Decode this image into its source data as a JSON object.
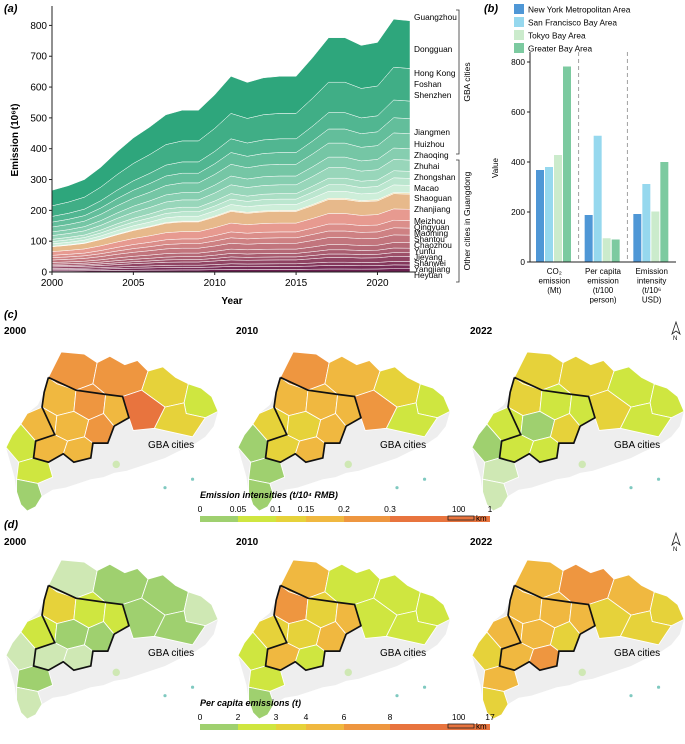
{
  "panel_a": {
    "label": "(a)",
    "ylabel": "Emission (10⁶t)",
    "xlabel": "Year",
    "group_top": "GBA cities",
    "group_bottom": "Other cities in Guangdong",
    "cities": [
      "Guangzhou",
      "Dongguan",
      "Hong Kong",
      "Foshan",
      "Shenzhen",
      "Jiangmen",
      "Huizhou",
      "Zhaoqing",
      "Zhuhai",
      "Zhongshan",
      "Macao",
      "Shaoguan",
      "Zhanjiang",
      "Meizhou",
      "Qingyuan",
      "Maoming",
      "Shantou",
      "Chaozhou",
      "Yunfu",
      "Jieyang",
      "Shanwei",
      "Yangjiang",
      "Heyuan"
    ]
  },
  "panel_b": {
    "label": "(b)",
    "ylabel": "Value",
    "legend": [
      "New York Metropolitan Area",
      "San Francisco Bay Area",
      "Tokyo Bay Area",
      "Greater Bay Area"
    ],
    "groups": [
      "CO₂ emission (Mt)",
      "Per capita emission (t/100 person)",
      "Emission intensity (t/10⁶ USD)"
    ]
  },
  "panel_c": {
    "label": "(c)",
    "years": [
      "2000",
      "2010",
      "2022"
    ],
    "gba": "GBA cities",
    "legend_title": "Emission intensities (t/10⁴ RMB)",
    "breaks": [
      "0",
      "0.05",
      "0.1",
      "0.15",
      "0.2",
      "0.3",
      "1"
    ],
    "scale_value": "100",
    "scale_unit": "km",
    "north": "N"
  },
  "panel_d": {
    "label": "(d)",
    "years": [
      "2000",
      "2010",
      "2022"
    ],
    "gba": "GBA cities",
    "legend_title": "Per capita emissions (t)",
    "breaks": [
      "0",
      "2",
      "3",
      "4",
      "6",
      "8",
      "17"
    ],
    "scale_value": "100",
    "scale_unit": "km",
    "north": "N"
  },
  "colors": {
    "ramp": [
      "#cfe8b4",
      "#9fd06f",
      "#cfe640",
      "#e6d23a",
      "#f0b840",
      "#ee9640",
      "#e8743e"
    ],
    "bar": [
      "#4f97d6",
      "#96d8ee",
      "#cbebcc",
      "#7ccaa0"
    ],
    "stack_top": "#35a77f",
    "stack_bottom": "#6b1f4f"
  },
  "chart_data": [
    {
      "type": "area",
      "title": "",
      "xlabel": "Year",
      "ylabel": "Emission (10⁶t)",
      "xlim": [
        2000,
        2022
      ],
      "ylim": [
        0,
        850
      ],
      "xticks": [
        2000,
        2005,
        2010,
        2015,
        2020
      ],
      "yticks": [
        0,
        100,
        200,
        300,
        400,
        500,
        600,
        700,
        800
      ],
      "x": [
        2000,
        2001,
        2002,
        2003,
        2004,
        2005,
        2006,
        2007,
        2008,
        2009,
        2010,
        2011,
        2012,
        2013,
        2014,
        2015,
        2016,
        2017,
        2018,
        2019,
        2020,
        2021,
        2022
      ],
      "total": [
        265,
        280,
        300,
        340,
        390,
        435,
        470,
        510,
        525,
        525,
        575,
        635,
        615,
        630,
        635,
        635,
        695,
        760,
        760,
        735,
        745,
        820,
        815
      ],
      "series_fraction": [
        {
          "name": "Heyuan",
          "value": 0.013
        },
        {
          "name": "Yangjiang",
          "value": 0.015
        },
        {
          "name": "Shanwei",
          "value": 0.014
        },
        {
          "name": "Jieyang",
          "value": 0.02
        },
        {
          "name": "Yunfu",
          "value": 0.015
        },
        {
          "name": "Chaozhou",
          "value": 0.018
        },
        {
          "name": "Shantou",
          "value": 0.022
        },
        {
          "name": "Maoming",
          "value": 0.03
        },
        {
          "name": "Qingyuan",
          "value": 0.028
        },
        {
          "name": "Meizhou",
          "value": 0.03
        },
        {
          "name": "Zhanjiang",
          "value": 0.045
        },
        {
          "name": "Shaoguan",
          "value": 0.06
        },
        {
          "name": "Macao",
          "value": 0.005
        },
        {
          "name": "Zhongshan",
          "value": 0.03
        },
        {
          "name": "Zhuhai",
          "value": 0.028
        },
        {
          "name": "Zhaoqing",
          "value": 0.028
        },
        {
          "name": "Huizhou",
          "value": 0.045
        },
        {
          "name": "Jiangmen",
          "value": 0.045
        },
        {
          "name": "Shenzhen",
          "value": 0.06
        },
        {
          "name": "Foshan",
          "value": 0.06
        },
        {
          "name": "Hong Kong",
          "value": 0.07
        },
        {
          "name": "Dongguan",
          "value": 0.13
        },
        {
          "name": "Guangzhou",
          "value": 0.19
        }
      ]
    },
    {
      "type": "bar",
      "title": "",
      "ylabel": "Value",
      "ylim": [
        0,
        800
      ],
      "yticks": [
        0,
        200,
        400,
        600,
        800
      ],
      "categories": [
        "CO₂ emission (Mt)",
        "Per capita emission (t/100 person)",
        "Emission intensity (t/10⁶ USD)"
      ],
      "series": [
        {
          "name": "New York Metropolitan Area",
          "values": [
            368,
            188,
            192
          ]
        },
        {
          "name": "San Francisco Bay Area",
          "values": [
            380,
            505,
            312
          ]
        },
        {
          "name": "Tokyo Bay Area",
          "values": [
            428,
            95,
            202
          ]
        },
        {
          "name": "Greater Bay Area",
          "values": [
            782,
            90,
            400
          ]
        }
      ]
    }
  ],
  "maps": {
    "c": [
      [
        5,
        5,
        3,
        2,
        4,
        5,
        4,
        6,
        3,
        4,
        4,
        5,
        4,
        4,
        2,
        2,
        1
      ],
      [
        5,
        4,
        3,
        2,
        4,
        4,
        4,
        5,
        2,
        3,
        3,
        4,
        4,
        3,
        1,
        1,
        1
      ],
      [
        3,
        3,
        2,
        2,
        3,
        2,
        2,
        3,
        2,
        2,
        1,
        3,
        2,
        2,
        1,
        0,
        0
      ]
    ],
    "d": [
      [
        0,
        1,
        1,
        0,
        3,
        2,
        2,
        1,
        1,
        2,
        1,
        1,
        0,
        0,
        0,
        1,
        0
      ],
      [
        4,
        2,
        2,
        2,
        5,
        3,
        4,
        2,
        2,
        3,
        3,
        4,
        2,
        4,
        2,
        2,
        1
      ],
      [
        4,
        5,
        4,
        3,
        4,
        4,
        4,
        3,
        3,
        4,
        4,
        3,
        5,
        4,
        3,
        4,
        3
      ]
    ]
  }
}
